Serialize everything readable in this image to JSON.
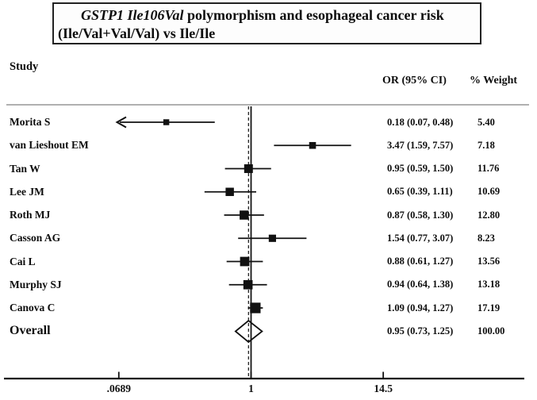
{
  "title": {
    "line1_italic": "GSTP1 Ile106Val",
    "line1_rest": " polymorphism and esophageal cancer risk",
    "line2": "(Ile/Val+Val/Val) vs Ile/Ile"
  },
  "headers": {
    "study": "Study",
    "or_ci": "OR (95% CI)",
    "weight": "% Weight"
  },
  "colors": {
    "ink": "#111111",
    "separator": "#b0b0b0"
  },
  "chart_data": {
    "type": "forest",
    "x_scale": "log10",
    "x_ticks": [
      0.0689,
      1,
      14.5
    ],
    "x_tick_labels": [
      ".0689",
      "1",
      "14.5"
    ],
    "null_line_value": 1,
    "overall_dashed_line_value": 0.95,
    "studies": [
      {
        "name": "Morita S",
        "or": 0.18,
        "ci_low": 0.07,
        "ci_high": 0.48,
        "or_text": "0.18 (0.07, 0.48)",
        "weight": 5.4,
        "weight_text": "5.40",
        "arrow_low": true
      },
      {
        "name": "van Lieshout EM",
        "or": 3.47,
        "ci_low": 1.59,
        "ci_high": 7.57,
        "or_text": "3.47 (1.59, 7.57)",
        "weight": 7.18,
        "weight_text": "7.18",
        "arrow_low": false
      },
      {
        "name": "Tan W",
        "or": 0.95,
        "ci_low": 0.59,
        "ci_high": 1.5,
        "or_text": "0.95 (0.59, 1.50)",
        "weight": 11.76,
        "weight_text": "11.76",
        "arrow_low": false
      },
      {
        "name": "Lee JM",
        "or": 0.65,
        "ci_low": 0.39,
        "ci_high": 1.11,
        "or_text": "0.65 (0.39, 1.11)",
        "weight": 10.69,
        "weight_text": "10.69",
        "arrow_low": false
      },
      {
        "name": "Roth MJ",
        "or": 0.87,
        "ci_low": 0.58,
        "ci_high": 1.3,
        "or_text": "0.87 (0.58, 1.30)",
        "weight": 12.8,
        "weight_text": "12.80",
        "arrow_low": false
      },
      {
        "name": "Casson AG",
        "or": 1.54,
        "ci_low": 0.77,
        "ci_high": 3.07,
        "or_text": "1.54 (0.77, 3.07)",
        "weight": 8.23,
        "weight_text": "8.23",
        "arrow_low": false
      },
      {
        "name": "Cai L",
        "or": 0.88,
        "ci_low": 0.61,
        "ci_high": 1.27,
        "or_text": "0.88 (0.61, 1.27)",
        "weight": 13.56,
        "weight_text": "13.56",
        "arrow_low": false
      },
      {
        "name": "Murphy SJ",
        "or": 0.94,
        "ci_low": 0.64,
        "ci_high": 1.38,
        "or_text": "0.94 (0.64, 1.38)",
        "weight": 13.18,
        "weight_text": "13.18",
        "arrow_low": false
      },
      {
        "name": "Canova C",
        "or": 1.09,
        "ci_low": 0.94,
        "ci_high": 1.27,
        "or_text": "1.09 (0.94, 1.27)",
        "weight": 17.19,
        "weight_text": "17.19",
        "arrow_low": false
      }
    ],
    "overall": {
      "name": "Overall",
      "or": 0.95,
      "ci_low": 0.73,
      "ci_high": 1.25,
      "or_text": "0.95 (0.73, 1.25)",
      "weight_text": "100.00"
    }
  },
  "layout_hints": {
    "legend": "none",
    "grid": "off"
  }
}
